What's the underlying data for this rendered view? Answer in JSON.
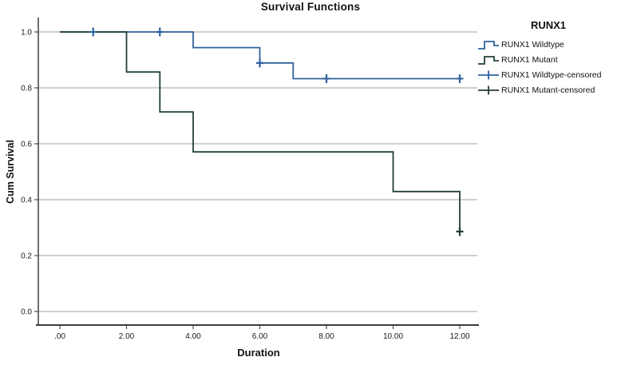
{
  "figure": {
    "title": "Survival Functions",
    "x_axis": {
      "label": "Duration"
    },
    "y_axis": {
      "label": "Cum Survival"
    },
    "legend": {
      "title": "RUNX1",
      "items": [
        {
          "label": "RUNX1 Wildtype",
          "marker": "step",
          "color": "#31639c"
        },
        {
          "label": "RUNX1 Mutant",
          "marker": "step",
          "color": "#22403c"
        },
        {
          "label": "RUNX1 Wildtype-censored",
          "marker": "plus",
          "color": "#2e639f"
        },
        {
          "label": "RUNX1 Mutant-censored",
          "marker": "plus",
          "color": "#263a38"
        }
      ]
    }
  },
  "chart_data": {
    "type": "line",
    "variant": "kaplan_meier_step",
    "title": "Survival Functions",
    "xlabel": "Duration",
    "ylabel": "Cum Survival",
    "xlim": [
      0,
      12.6
    ],
    "ylim": [
      0.0,
      1.0
    ],
    "x_tick_values": [
      0,
      2,
      4,
      6,
      8,
      10,
      12
    ],
    "x_tick_labels": [
      ".00",
      "2.00",
      "4.00",
      "6.00",
      "8.00",
      "10.00",
      "12.00"
    ],
    "y_tick_values": [
      1.0,
      0.8,
      0.6,
      0.4,
      0.2,
      0.0
    ],
    "y_tick_labels": [
      "1.0",
      "0.8",
      "0.6",
      "0.4",
      "0.2",
      "0.0"
    ],
    "grid": "horizontal-only",
    "gridline_color": "#b4b4b4",
    "axis_color": "#4a4a4a",
    "legend_title": "RUNX1",
    "legend_position": "right",
    "series": [
      {
        "name": "RUNX1 Wildtype",
        "color": "#31639c",
        "steps": [
          [
            0,
            1.0
          ],
          [
            4,
            1.0
          ],
          [
            4,
            0.944
          ],
          [
            6,
            0.944
          ],
          [
            6,
            0.889
          ],
          [
            7,
            0.889
          ],
          [
            7,
            0.833
          ],
          [
            12,
            0.833
          ]
        ]
      },
      {
        "name": "RUNX1 Mutant",
        "color": "#22403c",
        "steps": [
          [
            0,
            1.0
          ],
          [
            2,
            1.0
          ],
          [
            2,
            0.857
          ],
          [
            3,
            0.857
          ],
          [
            3,
            0.714
          ],
          [
            4,
            0.714
          ],
          [
            4,
            0.571
          ],
          [
            10,
            0.571
          ],
          [
            10,
            0.429
          ],
          [
            12,
            0.429
          ],
          [
            12,
            0.286
          ]
        ]
      }
    ],
    "censored_series": [
      {
        "name": "RUNX1 Wildtype-censored",
        "color": "#2e639f",
        "points": [
          [
            1,
            1.0
          ],
          [
            3,
            1.0
          ],
          [
            6,
            0.889
          ],
          [
            8,
            0.833
          ],
          [
            12,
            0.833
          ]
        ]
      },
      {
        "name": "RUNX1 Mutant-censored",
        "color": "#263a38",
        "points": [
          [
            12,
            0.286
          ]
        ]
      }
    ]
  }
}
